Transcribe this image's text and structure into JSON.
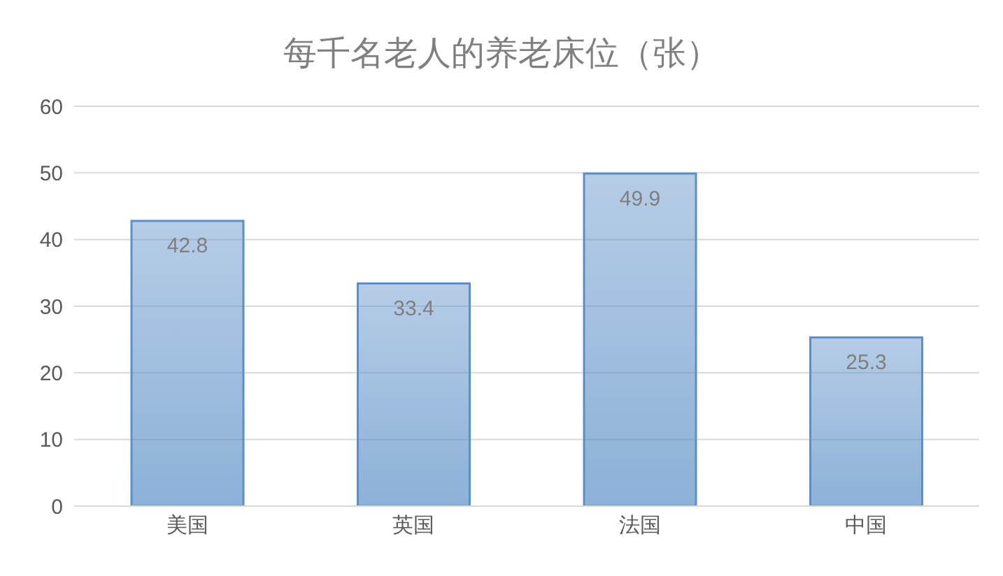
{
  "chart_data": {
    "type": "bar",
    "title": "每千名老人的养老床位（张）",
    "categories": [
      "美国",
      "英国",
      "法国",
      "中国"
    ],
    "values": [
      42.8,
      33.4,
      49.9,
      25.3
    ],
    "color": "#5b8fc7",
    "ylim": [
      0,
      60
    ],
    "yticks": [
      0,
      10,
      20,
      30,
      40,
      50,
      60
    ],
    "grid": "y",
    "data_labels": true
  }
}
